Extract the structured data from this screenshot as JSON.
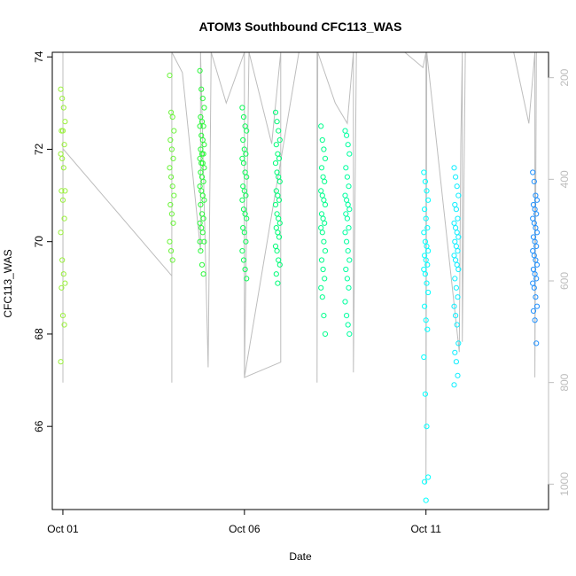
{
  "chart_data": {
    "type": "scatter",
    "title": "ATOM3 Southbound CFC113_WAS",
    "xlabel": "Date",
    "ylabel": "CFC113_WAS",
    "xlim": [
      "2016-09-30T17:00",
      "2016-10-14T09:00"
    ],
    "ylim": [
      64.2,
      74.1
    ],
    "x_ticks": [
      {
        "value": "2016-10-01",
        "label": "Oct 01"
      },
      {
        "value": "2016-10-06",
        "label": "Oct 06"
      },
      {
        "value": "2016-10-11",
        "label": "Oct 11"
      }
    ],
    "y_ticks": [
      66,
      68,
      70,
      72,
      74
    ],
    "right_axis": {
      "quantity": "pressure",
      "reversed": true,
      "range": [
        150,
        1050
      ],
      "ticks": [
        200,
        400,
        600,
        800,
        1000
      ],
      "color": "#bdbdbd"
    },
    "grid": false,
    "legend": "none",
    "point_style": "open circle",
    "color_scale": [
      "#9af03c",
      "#00ff3c",
      "#00ffa0",
      "#00ffff",
      "#1e90ff"
    ],
    "pressure_trace": [
      [
        "2016-10-01T00:00",
        150
      ],
      [
        "2016-10-01T00:00",
        800
      ],
      [
        "2016-10-01T00:05",
        340
      ],
      [
        "2016-10-04T00:00",
        590
      ],
      [
        "2016-10-04T00:00",
        800
      ],
      [
        "2016-10-04T00:00",
        150
      ],
      [
        "2016-10-04T07:00",
        190
      ],
      [
        "2016-10-04T19:00",
        540
      ],
      [
        "2016-10-04T19:00",
        150
      ],
      [
        "2016-10-05T00:00",
        770
      ],
      [
        "2016-10-05T02:00",
        150
      ],
      [
        "2016-10-05T12:00",
        250
      ],
      [
        "2016-10-06T00:00",
        150
      ],
      [
        "2016-10-06T00:00",
        790
      ],
      [
        "2016-10-06T03:00",
        150
      ],
      [
        "2016-10-06T18:00",
        330
      ],
      [
        "2016-10-07T00:00",
        150
      ],
      [
        "2016-10-07T00:00",
        760
      ],
      [
        "2016-10-06T00:00",
        790
      ],
      [
        "2016-10-07T12:00",
        150
      ],
      [
        "2016-10-08T00:00",
        150
      ],
      [
        "2016-10-08T00:00",
        800
      ],
      [
        "2016-10-08T00:30",
        150
      ],
      [
        "2016-10-08T12:00",
        250
      ],
      [
        "2016-10-08T20:00",
        290
      ],
      [
        "2016-10-09T00:00",
        150
      ],
      [
        "2016-10-09T00:00",
        780
      ],
      [
        "2016-10-09T02:00",
        150
      ],
      [
        "2016-10-10T10:00",
        150
      ],
      [
        "2016-10-10T22:00",
        180
      ],
      [
        "2016-10-11T00:00",
        150
      ],
      [
        "2016-10-11T00:00",
        1000
      ],
      [
        "2016-10-11T00:30",
        150
      ],
      [
        "2016-10-11T22:00",
        740
      ],
      [
        "2016-10-11T23:00",
        330
      ],
      [
        "2016-10-12T00:00",
        150
      ],
      [
        "2016-10-12T00:00",
        720
      ],
      [
        "2016-10-12T02:00",
        150
      ],
      [
        "2016-10-12T16:00",
        150
      ],
      [
        "2016-10-13T10:00",
        150
      ],
      [
        "2016-10-13T20:00",
        290
      ],
      [
        "2016-10-14T00:00",
        150
      ],
      [
        "2016-10-14T00:00",
        790
      ],
      [
        "2016-10-14T01:00",
        150
      ]
    ],
    "series": [
      {
        "date": "2016-10-01",
        "color": "#9af03c",
        "values": [
          73.3,
          73.1,
          72.9,
          72.6,
          72.4,
          72.4,
          72.1,
          71.9,
          71.8,
          71.6,
          71.1,
          71.1,
          70.9,
          70.5,
          70.2,
          69.6,
          69.3,
          69.1,
          69.0,
          68.4,
          68.2,
          67.4
        ]
      },
      {
        "date": "2016-10-04",
        "color": "#6cf43c",
        "values": [
          73.6,
          72.8,
          72.7,
          72.4,
          72.2,
          72.0,
          71.8,
          71.6,
          71.4,
          71.2,
          71.0,
          70.8,
          70.6,
          70.4,
          70.0,
          69.8,
          69.6
        ]
      },
      {
        "date": "2016-10-04T20:00",
        "color": "#2cf83c",
        "values": [
          73.7,
          73.3,
          73.1,
          72.9,
          72.7,
          72.6,
          72.5,
          72.5,
          72.3,
          72.2,
          72.1,
          72.0,
          71.9,
          71.9,
          71.8,
          71.7,
          71.7,
          71.6,
          71.5,
          71.4,
          71.3,
          71.2,
          71.1,
          71.0,
          70.9,
          70.8,
          70.6,
          70.5,
          70.4,
          70.3,
          70.2,
          70.0,
          69.8,
          69.5,
          69.3,
          70.0
        ]
      },
      {
        "date": "2016-10-06",
        "color": "#10fa5a",
        "values": [
          72.9,
          72.7,
          72.5,
          72.4,
          72.2,
          72.0,
          71.9,
          71.8,
          71.7,
          71.5,
          71.4,
          71.2,
          71.1,
          71.0,
          70.9,
          70.7,
          70.6,
          70.5,
          70.3,
          70.2,
          70.0,
          69.8,
          69.6,
          69.4,
          69.2
        ]
      },
      {
        "date": "2016-10-06T22:00",
        "color": "#00fc78",
        "values": [
          72.8,
          72.6,
          72.4,
          72.2,
          72.1,
          71.9,
          71.8,
          71.7,
          71.5,
          71.4,
          71.3,
          71.1,
          71.0,
          70.9,
          70.8,
          70.6,
          70.5,
          70.4,
          70.3,
          70.2,
          70.1,
          69.9,
          69.8,
          69.6,
          69.5,
          69.3,
          69.1
        ]
      },
      {
        "date": "2016-10-08T04:00",
        "color": "#00fe8c",
        "values": [
          72.5,
          72.2,
          72.0,
          71.8,
          71.6,
          71.4,
          71.3,
          71.1,
          71.0,
          70.9,
          70.8,
          70.6,
          70.5,
          70.4,
          70.3,
          70.2,
          70.0,
          69.8,
          69.6,
          69.4,
          69.2,
          69.0,
          68.8,
          68.4,
          68.0
        ]
      },
      {
        "date": "2016-10-08T20:00",
        "color": "#00ffa0",
        "values": [
          72.4,
          72.3,
          72.1,
          71.9,
          71.6,
          71.4,
          71.2,
          71.0,
          70.9,
          70.8,
          70.7,
          70.6,
          70.5,
          70.3,
          70.2,
          70.0,
          69.8,
          69.6,
          69.4,
          69.2,
          69.0,
          68.7,
          68.4,
          68.2,
          68.0
        ]
      },
      {
        "date": "2016-10-11",
        "color": "#00ffff",
        "values": [
          71.5,
          71.3,
          71.1,
          70.9,
          70.7,
          70.5,
          70.3,
          70.2,
          70.0,
          69.9,
          69.8,
          69.7,
          69.6,
          69.5,
          69.4,
          69.3,
          69.1,
          68.9,
          68.6,
          68.3,
          68.1,
          67.5,
          66.7,
          66.0,
          64.9,
          64.8,
          64.4
        ]
      },
      {
        "date": "2016-10-11T20:00",
        "color": "#10eeff",
        "values": [
          71.6,
          71.4,
          71.2,
          71.0,
          70.8,
          70.7,
          70.5,
          70.4,
          70.3,
          70.2,
          70.1,
          70.0,
          69.9,
          69.8,
          69.7,
          69.6,
          69.5,
          69.4,
          69.2,
          69.0,
          68.8,
          68.6,
          68.4,
          68.2,
          67.8,
          67.6,
          67.4,
          67.1,
          66.9
        ]
      },
      {
        "date": "2016-10-14",
        "color": "#1e90ff",
        "values": [
          71.5,
          71.3,
          71.0,
          70.9,
          70.8,
          70.7,
          70.6,
          70.5,
          70.4,
          70.3,
          70.2,
          70.1,
          70.0,
          69.9,
          69.8,
          69.7,
          69.6,
          69.5,
          69.4,
          69.3,
          69.2,
          69.1,
          69.0,
          68.8,
          68.6,
          68.5,
          68.3,
          67.8
        ]
      }
    ]
  }
}
